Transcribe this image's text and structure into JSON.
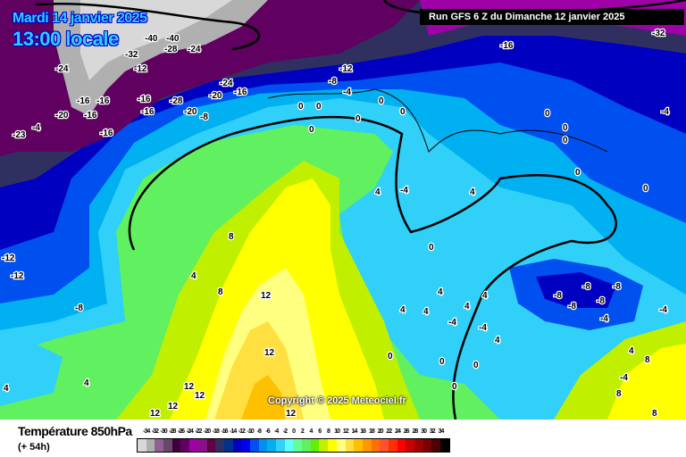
{
  "header": {
    "date": "Mardi 14 janvier 2025",
    "time": "13:00 locale",
    "run": "Run GFS 6 Z du Dimanche 12 janvier 2025"
  },
  "map": {
    "copyright": "Copyright © 2025 Meteociel.fr",
    "contour_labels": [
      "-40",
      "-40",
      "-32",
      "-28",
      "-24",
      "-24",
      "-12",
      "-24",
      "-20",
      "-16",
      "-12",
      "-8",
      "-4",
      "-16",
      "-32",
      "-16",
      "-16",
      "-16",
      "-16",
      "-28",
      "-20",
      "-16",
      "-20",
      "-23",
      "-4",
      "-16",
      "-8",
      "0",
      "0",
      "0",
      "0",
      "0",
      "0",
      "0",
      "0",
      "0",
      "0",
      "4",
      "0",
      "4",
      "-4",
      "0",
      "-4",
      "8",
      "4",
      "8",
      "12",
      "12",
      "12",
      "12",
      "4",
      "4",
      "4",
      "4",
      "4",
      "4",
      "0",
      "0",
      "0",
      "0",
      "-8",
      "-8",
      "-8",
      "-8",
      "-8",
      "-4",
      "-4",
      "-4",
      "4",
      "8",
      "8",
      "8",
      "12",
      "-12",
      "-12",
      "-8",
      "4",
      "4",
      "12",
      "12",
      "-4",
      "-4"
    ]
  },
  "legend": {
    "title": "Température 850hPa",
    "subtitle": "(+ 54h)",
    "scale_labels": [
      "-34",
      "-32",
      "-30",
      "-28",
      "-26",
      "-24",
      "-22",
      "-20",
      "-18",
      "-16",
      "-14",
      "-12",
      "-10",
      "-8",
      "-6",
      "-4",
      "-2",
      "0",
      "2",
      "4",
      "6",
      "8",
      "10",
      "12",
      "14",
      "16",
      "18",
      "20",
      "22",
      "24",
      "26",
      "28",
      "30",
      "32",
      "34"
    ],
    "colors": [
      "#d8d8d8",
      "#b0b0b0",
      "#906090",
      "#684868",
      "#400040",
      "#600060",
      "#a000a8",
      "#881088",
      "#600040",
      "#303060",
      "#003090",
      "#0000c0",
      "#0000f0",
      "#0050f0",
      "#0090f0",
      "#00b0f0",
      "#30d0f8",
      "#60ffff",
      "#60ff98",
      "#60f060",
      "#60f000",
      "#c0f000",
      "#ffff00",
      "#ffff80",
      "#ffe040",
      "#ffc000",
      "#ff9800",
      "#ff7000",
      "#ff5030",
      "#ff3000",
      "#ff0000",
      "#c80000",
      "#a00000",
      "#780000",
      "#500000",
      "#000000"
    ]
  }
}
